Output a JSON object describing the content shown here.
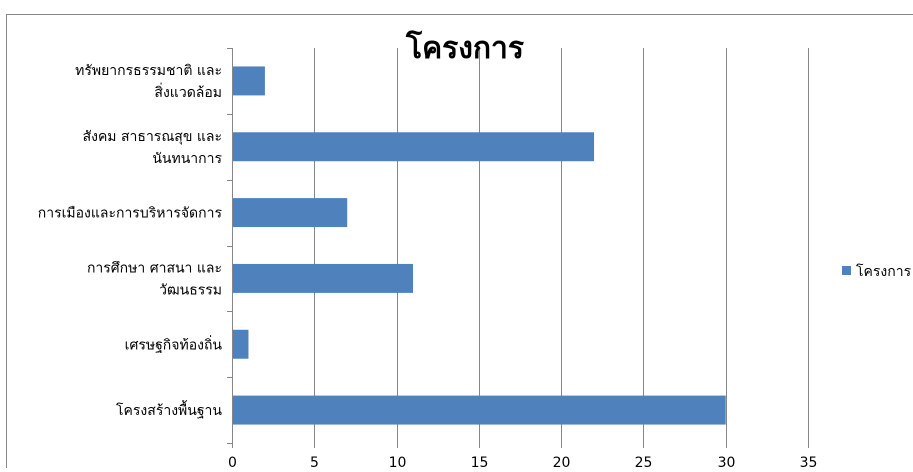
{
  "chart_data": {
    "type": "bar",
    "orientation": "horizontal",
    "title": "โครงการ",
    "categories": [
      [
        "ทรัพยากรธรรมชาติ และ",
        "สิ่งแวดล้อม"
      ],
      [
        "สังคม สาธารณสุข และ",
        "นันทนาการ"
      ],
      [
        "การเมืองและการบริหารจัดการ"
      ],
      [
        "การศึกษา ศาสนา และ",
        "วัฒนธรรม"
      ],
      [
        "เศรษฐกิจท้องถิ่น"
      ],
      [
        "โครงสร้างพื้นฐาน"
      ]
    ],
    "series": [
      {
        "name": "โครงการ",
        "values": [
          2,
          22,
          7,
          11,
          1,
          30
        ]
      }
    ],
    "xlim": [
      0,
      35
    ],
    "xticks": [
      0,
      5,
      10,
      15,
      20,
      25,
      30,
      35
    ],
    "grid": true,
    "legend": "right",
    "colors": {
      "bar": "#4F81BD",
      "grid": "#868686",
      "axis": "#868686",
      "text": "#000000"
    }
  }
}
